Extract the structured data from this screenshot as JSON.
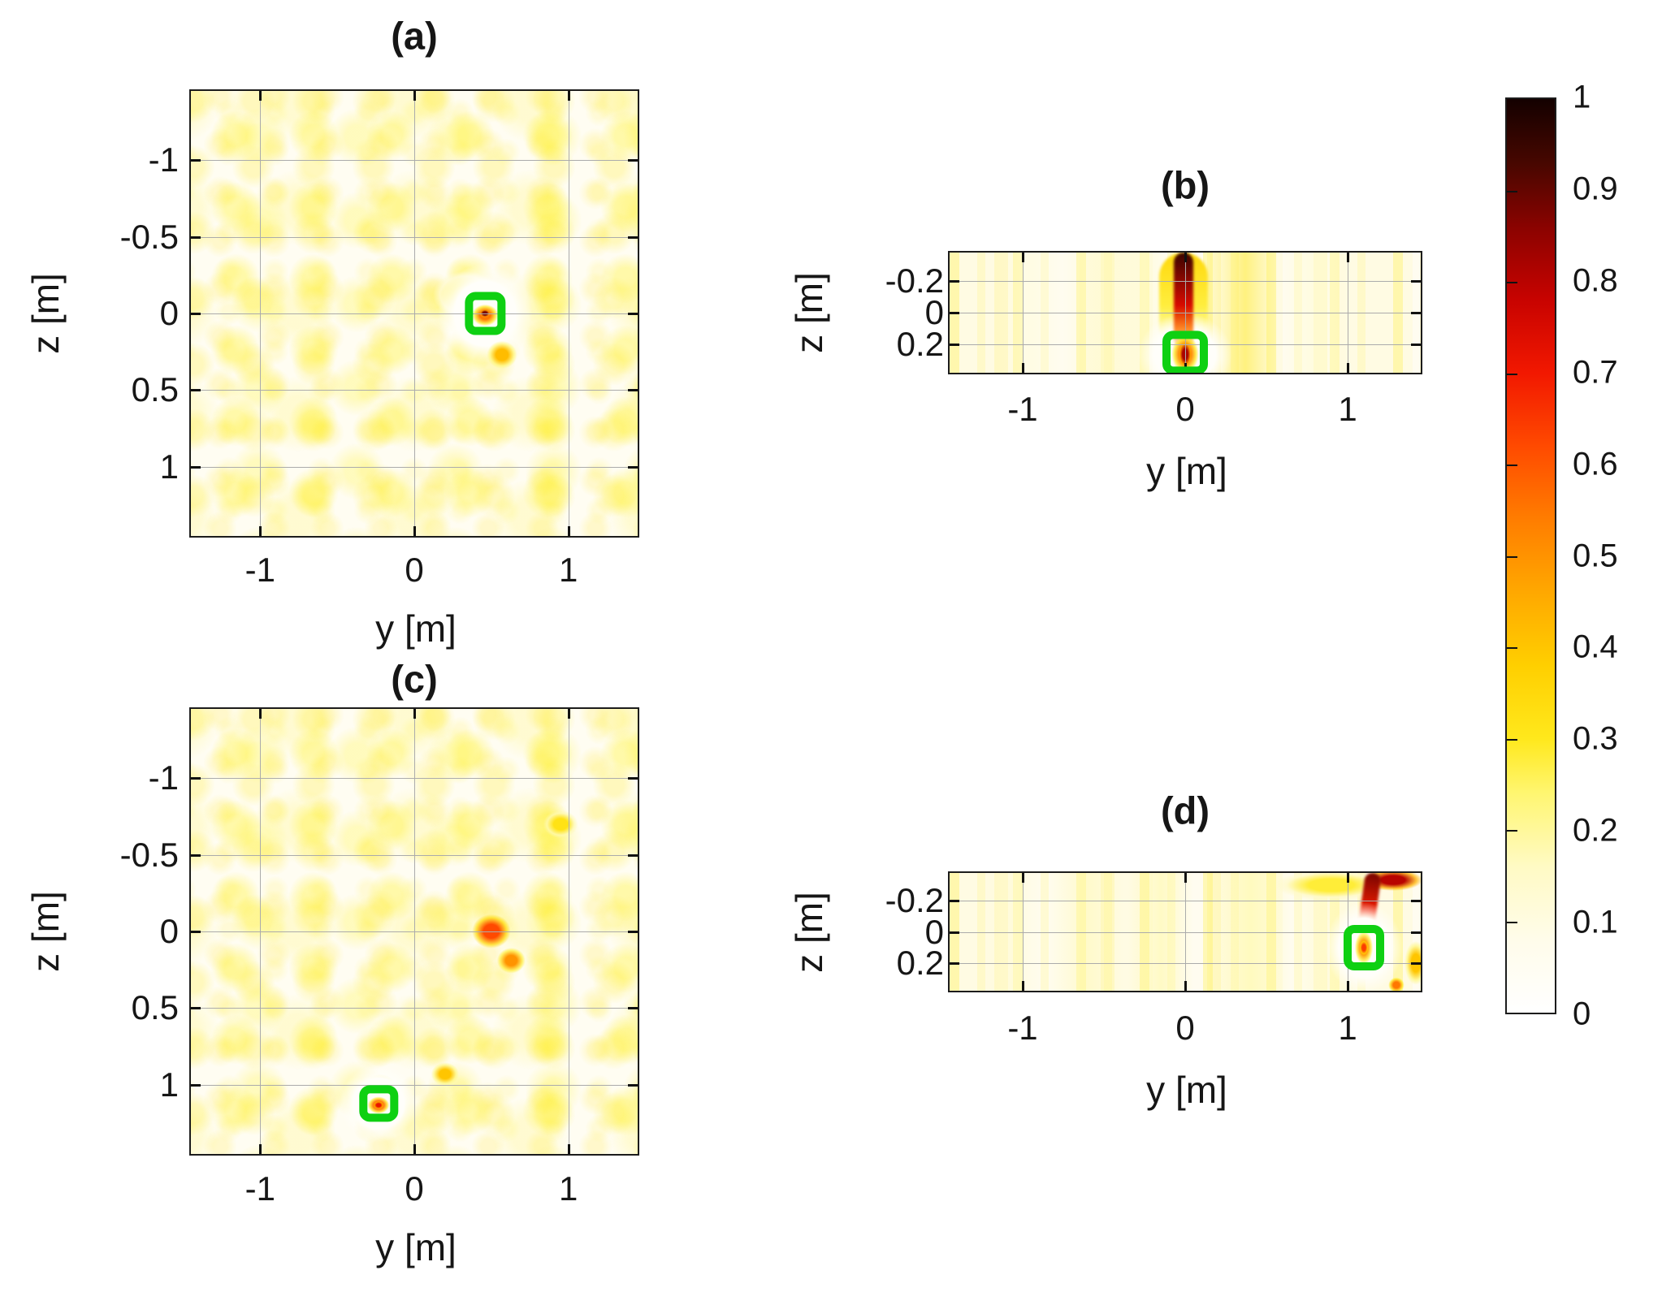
{
  "colors": {
    "marker_green": "#0ed012",
    "axis_text": "#161616",
    "border": "#1c1c1c",
    "grid": "#ababab",
    "background": "#ffffff"
  },
  "colormap_stops": [
    [
      0.0,
      "#ffffff"
    ],
    [
      0.08,
      "#fffcea"
    ],
    [
      0.16,
      "#fffac4"
    ],
    [
      0.24,
      "#fff671"
    ],
    [
      0.3,
      "#ffe81c"
    ],
    [
      0.38,
      "#ffcf00"
    ],
    [
      0.46,
      "#ffa800"
    ],
    [
      0.54,
      "#ff7d00"
    ],
    [
      0.62,
      "#ff4a00"
    ],
    [
      0.7,
      "#f21800"
    ],
    [
      0.78,
      "#c80300"
    ],
    [
      0.86,
      "#8a0300"
    ],
    [
      0.93,
      "#470700"
    ],
    [
      1.0,
      "#140100"
    ]
  ],
  "colorbar": {
    "min": 0,
    "max": 1,
    "tick_labels": [
      "1",
      "0.9",
      "0.8",
      "0.7",
      "0.6",
      "0.5",
      "0.4",
      "0.3",
      "0.2",
      "0.1",
      "0"
    ]
  },
  "chart_data": [
    {
      "id": "a",
      "type": "heatmap",
      "title": "(a)",
      "xlabel": "y [m]",
      "ylabel": "z [m]",
      "xlim": [
        -1.45,
        1.45
      ],
      "ylim_top_to_bottom": [
        -1.45,
        1.45
      ],
      "xticks": [
        {
          "v": -1,
          "label": "-1"
        },
        {
          "v": 0,
          "label": "0"
        },
        {
          "v": 1,
          "label": "1"
        }
      ],
      "yticks": [
        {
          "v": -1,
          "label": "-1"
        },
        {
          "v": -0.5,
          "label": "-0.5"
        },
        {
          "v": 0,
          "label": "0"
        },
        {
          "v": 0.5,
          "label": "0.5"
        },
        {
          "v": 1,
          "label": "1"
        }
      ],
      "truth_marker": {
        "y": 0.46,
        "z": 0.0,
        "w_m": 0.26,
        "h_m": 0.28
      },
      "features": [
        {
          "kind": "blob",
          "y": 0.33,
          "z": -0.12,
          "value": 0.2,
          "size_m": [
            0.3,
            0.22
          ]
        },
        {
          "kind": "white",
          "y": 0.46,
          "z": 0.0,
          "size_m": [
            0.36,
            0.38
          ]
        },
        {
          "kind": "blob",
          "y": 0.46,
          "z": 0.01,
          "value": 0.55,
          "size_m": [
            0.12,
            0.1
          ]
        },
        {
          "kind": "blob",
          "y": 0.46,
          "z": 0.0,
          "value": 0.88,
          "size_m": [
            0.05,
            0.04
          ]
        },
        {
          "kind": "blob",
          "y": 0.57,
          "z": 0.27,
          "value": 0.42,
          "size_m": [
            0.14,
            0.13
          ]
        }
      ]
    },
    {
      "id": "b",
      "type": "heatmap",
      "title": "(b)",
      "xlabel": "y [m]",
      "ylabel": "z [m]",
      "xlim": [
        -1.45,
        1.45
      ],
      "ylim_top_to_bottom": [
        -0.375,
        0.375
      ],
      "xticks": [
        {
          "v": -1,
          "label": "-1"
        },
        {
          "v": 0,
          "label": "0"
        },
        {
          "v": 1,
          "label": "1"
        }
      ],
      "yticks": [
        {
          "v": -0.2,
          "label": "-0.2"
        },
        {
          "v": 0,
          "label": "0"
        },
        {
          "v": 0.2,
          "label": "0.2"
        }
      ],
      "truth_marker": {
        "y": 0.0,
        "z": 0.25,
        "w_m": 0.28,
        "h_m": 0.27
      },
      "features": [
        {
          "kind": "vstripe",
          "y": 0.37,
          "value": 0.3,
          "width_m": 0.2
        },
        {
          "kind": "vstripe",
          "y": -0.5,
          "value": 0.16,
          "width_m": 0.26
        },
        {
          "kind": "vstripe",
          "y": 0.8,
          "value": 0.14,
          "width_m": 0.22
        },
        {
          "kind": "vstripe",
          "y": -0.95,
          "value": 0.12,
          "width_m": 0.2
        },
        {
          "kind": "vstripe",
          "y": -0.25,
          "value": 0.14,
          "width_m": 0.16
        },
        {
          "kind": "streak",
          "y": -0.01,
          "z_from": -0.375,
          "z_to": 0.14,
          "width_m": 0.3,
          "value_top": 0.35,
          "value_end": 0.2,
          "tilt_deg": 0
        },
        {
          "kind": "white",
          "y": 0.0,
          "z": 0.26,
          "size_m": [
            0.34,
            0.3
          ]
        },
        {
          "kind": "streak",
          "y": -0.01,
          "z_from": -0.375,
          "z_to": 0.13,
          "width_m": 0.12,
          "value_top": 0.95,
          "value_end": 0.55,
          "tilt_deg": 0
        },
        {
          "kind": "blob",
          "y": 0.0,
          "z": 0.26,
          "value": 0.55,
          "size_m": [
            0.12,
            0.17
          ]
        },
        {
          "kind": "blob",
          "y": 0.0,
          "z": 0.26,
          "value": 0.82,
          "size_m": [
            0.06,
            0.12
          ]
        }
      ]
    },
    {
      "id": "c",
      "type": "heatmap",
      "title": "(c)",
      "xlabel": "y [m]",
      "ylabel": "z [m]",
      "xlim": [
        -1.45,
        1.45
      ],
      "ylim_top_to_bottom": [
        -1.45,
        1.45
      ],
      "xticks": [
        {
          "v": -1,
          "label": "-1"
        },
        {
          "v": 0,
          "label": "0"
        },
        {
          "v": 1,
          "label": "1"
        }
      ],
      "yticks": [
        {
          "v": -1,
          "label": "-1"
        },
        {
          "v": -0.5,
          "label": "-0.5"
        },
        {
          "v": 0,
          "label": "0"
        },
        {
          "v": 0.5,
          "label": "0.5"
        },
        {
          "v": 1,
          "label": "1"
        }
      ],
      "truth_marker": {
        "y": -0.23,
        "z": 1.12,
        "w_m": 0.25,
        "h_m": 0.24
      },
      "features": [
        {
          "kind": "blob",
          "y": 0.5,
          "z": 0.0,
          "value": 0.62,
          "size_m": [
            0.18,
            0.16
          ]
        },
        {
          "kind": "blob",
          "y": 0.63,
          "z": 0.19,
          "value": 0.5,
          "size_m": [
            0.13,
            0.12
          ]
        },
        {
          "kind": "blob",
          "y": 0.95,
          "z": -0.7,
          "value": 0.32,
          "size_m": [
            0.16,
            0.13
          ]
        },
        {
          "kind": "blob",
          "y": 0.2,
          "z": 0.93,
          "value": 0.4,
          "size_m": [
            0.13,
            0.11
          ]
        },
        {
          "kind": "blob",
          "y": -0.22,
          "z": 1.0,
          "value": 0.38,
          "size_m": [
            0.13,
            0.1
          ]
        },
        {
          "kind": "white",
          "y": -0.23,
          "z": 1.12,
          "size_m": [
            0.3,
            0.3
          ]
        },
        {
          "kind": "blob",
          "y": -0.23,
          "z": 1.13,
          "value": 0.6,
          "size_m": [
            0.1,
            0.08
          ]
        },
        {
          "kind": "blob",
          "y": -0.23,
          "z": 1.13,
          "value": 0.72,
          "size_m": [
            0.05,
            0.04
          ]
        }
      ]
    },
    {
      "id": "d",
      "type": "heatmap",
      "title": "(d)",
      "xlabel": "y [m]",
      "ylabel": "z [m]",
      "xlim": [
        -1.45,
        1.45
      ],
      "ylim_top_to_bottom": [
        -0.375,
        0.375
      ],
      "xticks": [
        {
          "v": -1,
          "label": "-1"
        },
        {
          "v": 0,
          "label": "0"
        },
        {
          "v": 1,
          "label": "1"
        }
      ],
      "yticks": [
        {
          "v": -0.2,
          "label": "-0.2"
        },
        {
          "v": 0,
          "label": "0"
        },
        {
          "v": 0.2,
          "label": "0.2"
        }
      ],
      "truth_marker": {
        "y": 1.1,
        "z": 0.1,
        "w_m": 0.25,
        "h_m": 0.29
      },
      "features": [
        {
          "kind": "vstripe",
          "y": -0.62,
          "value": 0.18,
          "width_m": 0.24
        },
        {
          "kind": "vstripe",
          "y": -0.15,
          "value": 0.2,
          "width_m": 0.2
        },
        {
          "kind": "vstripe",
          "y": 0.4,
          "value": 0.2,
          "width_m": 0.26
        },
        {
          "kind": "vstripe",
          "y": -1.05,
          "value": 0.13,
          "width_m": 0.2
        },
        {
          "kind": "vstripe",
          "y": 0.85,
          "value": 0.16,
          "width_m": 0.2
        },
        {
          "kind": "blob",
          "y": 0.9,
          "z": -0.3,
          "value": 0.28,
          "size_m": [
            0.5,
            0.14
          ]
        },
        {
          "kind": "blob",
          "y": 1.28,
          "z": -0.33,
          "value": 0.8,
          "size_m": [
            0.26,
            0.1
          ]
        },
        {
          "kind": "streak",
          "y": 1.16,
          "z_from": -0.375,
          "z_to": -0.02,
          "width_m": 0.1,
          "value_top": 0.88,
          "value_end": 0.5,
          "tilt_deg": 8
        },
        {
          "kind": "white",
          "y": 1.1,
          "z": 0.1,
          "size_m": [
            0.28,
            0.34
          ]
        },
        {
          "kind": "blob",
          "y": 1.1,
          "z": 0.1,
          "value": 0.5,
          "size_m": [
            0.08,
            0.15
          ]
        },
        {
          "kind": "blob",
          "y": 1.1,
          "z": 0.1,
          "value": 0.64,
          "size_m": [
            0.04,
            0.07
          ]
        },
        {
          "kind": "blob",
          "y": 1.3,
          "z": 0.34,
          "value": 0.55,
          "size_m": [
            0.07,
            0.07
          ]
        },
        {
          "kind": "blob",
          "y": 1.42,
          "z": 0.2,
          "value": 0.4,
          "size_m": [
            0.1,
            0.2
          ]
        }
      ]
    }
  ]
}
